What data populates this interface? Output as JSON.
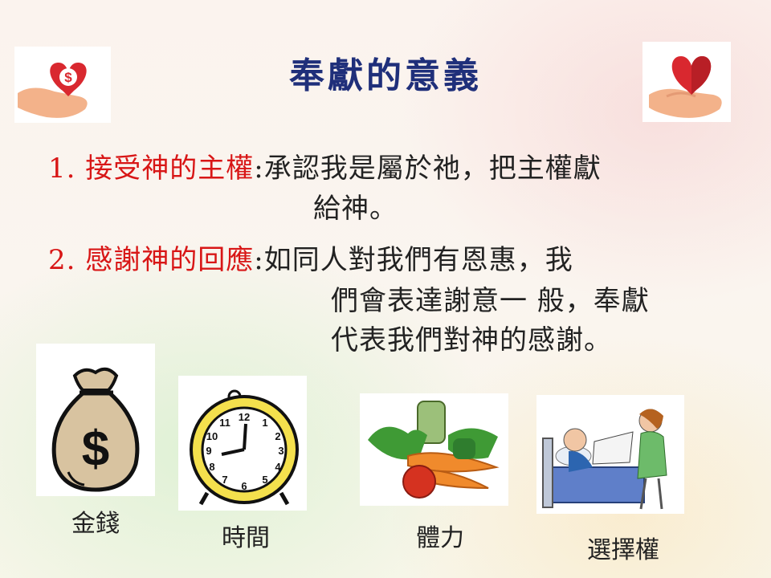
{
  "slide": {
    "title": "奉獻的意義",
    "points": [
      {
        "number": "1.",
        "heading": "接受神的主權",
        "colon": ":",
        "lines": [
          "承認我是屬於祂，把主權獻",
          "給神。"
        ]
      },
      {
        "number": "2.",
        "heading": "感謝神的回應",
        "colon": ":",
        "lines": [
          "如同人對我們有恩惠，我",
          "們會表達謝意一 般，奉獻",
          "代表我們對神的感謝。"
        ]
      }
    ],
    "items": [
      {
        "label": "金錢",
        "icon": "money-bag-icon"
      },
      {
        "label": "時間",
        "icon": "alarm-clock-icon"
      },
      {
        "label": "體力",
        "icon": "vegetables-icon"
      },
      {
        "label": "選擇權",
        "icon": "bedside-visit-icon"
      }
    ],
    "colors": {
      "title": "#1f2f7a",
      "heading": "#d81616",
      "text": "#222222",
      "heart": "#d9282f",
      "hand": "#f3b28a"
    }
  }
}
